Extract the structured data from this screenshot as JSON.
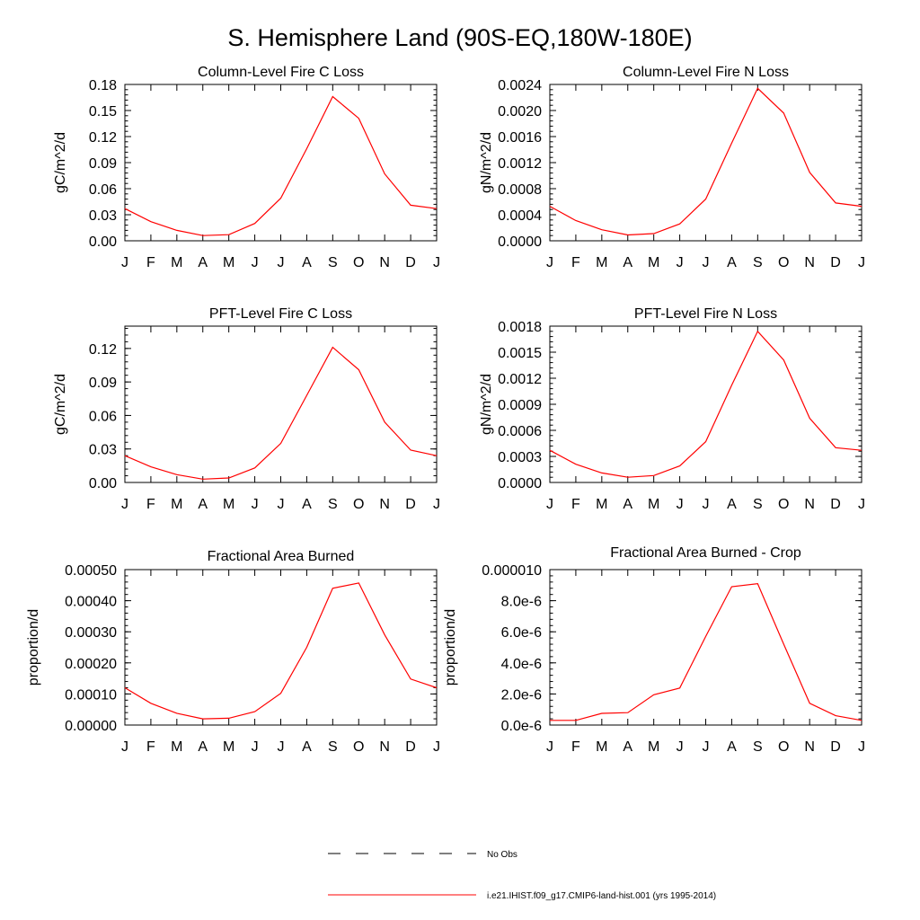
{
  "title": "S. Hemisphere Land (90S-EQ,180W-180E)",
  "chart_data": [
    {
      "type": "line",
      "title": "Column-Level Fire C Loss",
      "ylabel": "gC/m^2/d",
      "categories": [
        "J",
        "F",
        "M",
        "A",
        "M",
        "J",
        "J",
        "A",
        "S",
        "O",
        "N",
        "D",
        "J"
      ],
      "ylim": [
        0,
        0.18
      ],
      "yticks": [
        "0.00",
        "0.03",
        "0.06",
        "0.09",
        "0.12",
        "0.15",
        "0.18"
      ],
      "series": [
        {
          "name": "i.e21.IHIST.f09_g17.CMIP6-land-hist.001 (yrs 1995-2014)",
          "color": "#ff0000",
          "values": [
            0.037,
            0.022,
            0.012,
            0.006,
            0.007,
            0.02,
            0.049,
            0.106,
            0.166,
            0.141,
            0.077,
            0.041,
            0.037
          ]
        }
      ]
    },
    {
      "type": "line",
      "title": "Column-Level Fire N Loss",
      "ylabel": "gN/m^2/d",
      "categories": [
        "J",
        "F",
        "M",
        "A",
        "M",
        "J",
        "J",
        "A",
        "S",
        "O",
        "N",
        "D",
        "J"
      ],
      "ylim": [
        0,
        0.0024
      ],
      "yticks": [
        "0.0000",
        "0.0004",
        "0.0008",
        "0.0012",
        "0.0016",
        "0.0020",
        "0.0024"
      ],
      "series": [
        {
          "name": "i.e21.IHIST.f09_g17.CMIP6-land-hist.001 (yrs 1995-2014)",
          "color": "#ff0000",
          "values": [
            0.00053,
            0.00031,
            0.00017,
            9e-05,
            0.00011,
            0.00026,
            0.00064,
            0.0015,
            0.00234,
            0.00196,
            0.00105,
            0.00058,
            0.00053
          ]
        }
      ]
    },
    {
      "type": "line",
      "title": "PFT-Level Fire C Loss",
      "ylabel": "gC/m^2/d",
      "categories": [
        "J",
        "F",
        "M",
        "A",
        "M",
        "J",
        "J",
        "A",
        "S",
        "O",
        "N",
        "D",
        "J"
      ],
      "ylim": [
        0,
        0.14
      ],
      "yticks": [
        "0.00",
        "0.03",
        "0.06",
        "0.09",
        "0.12"
      ],
      "series": [
        {
          "name": "i.e21.IHIST.f09_g17.CMIP6-land-hist.001 (yrs 1995-2014)",
          "color": "#ff0000",
          "values": [
            0.024,
            0.014,
            0.007,
            0.003,
            0.004,
            0.013,
            0.035,
            0.078,
            0.121,
            0.101,
            0.054,
            0.029,
            0.024
          ]
        }
      ]
    },
    {
      "type": "line",
      "title": "PFT-Level Fire N Loss",
      "ylabel": "gN/m^2/d",
      "categories": [
        "J",
        "F",
        "M",
        "A",
        "M",
        "J",
        "J",
        "A",
        "S",
        "O",
        "N",
        "D",
        "J"
      ],
      "ylim": [
        0,
        0.0018
      ],
      "yticks": [
        "0.0000",
        "0.0003",
        "0.0006",
        "0.0009",
        "0.0012",
        "0.0015",
        "0.0018"
      ],
      "series": [
        {
          "name": "i.e21.IHIST.f09_g17.CMIP6-land-hist.001 (yrs 1995-2014)",
          "color": "#ff0000",
          "values": [
            0.00037,
            0.00021,
            0.00011,
            6e-05,
            8e-05,
            0.00019,
            0.00047,
            0.00112,
            0.00174,
            0.00141,
            0.00074,
            0.0004,
            0.00037
          ]
        }
      ]
    },
    {
      "type": "line",
      "title": "Fractional Area Burned",
      "ylabel": "proportion/d",
      "categories": [
        "J",
        "F",
        "M",
        "A",
        "M",
        "J",
        "J",
        "A",
        "S",
        "O",
        "N",
        "D",
        "J"
      ],
      "ylim": [
        0,
        0.0005
      ],
      "yticks": [
        "0.00000",
        "0.00010",
        "0.00020",
        "0.00030",
        "0.00040",
        "0.00050"
      ],
      "series": [
        {
          "name": "i.e21.IHIST.f09_g17.CMIP6-land-hist.001 (yrs 1995-2014)",
          "color": "#ff0000",
          "values": [
            0.00012,
            7e-05,
            3.8e-05,
            2e-05,
            2.2e-05,
            4.3e-05,
            0.000102,
            0.00025,
            0.00044,
            0.000457,
            0.00029,
            0.000148,
            0.00012
          ]
        }
      ]
    },
    {
      "type": "line",
      "title": "Fractional Area Burned - Crop",
      "ylabel": "proportion/d",
      "categories": [
        "J",
        "F",
        "M",
        "A",
        "M",
        "J",
        "J",
        "A",
        "S",
        "O",
        "N",
        "D",
        "J"
      ],
      "ylim": [
        0,
        1e-05
      ],
      "yticks": [
        "0.0e-6",
        "2.0e-6",
        "4.0e-6",
        "6.0e-6",
        "8.0e-6",
        "0.000010"
      ],
      "series": [
        {
          "name": "i.e21.IHIST.f09_g17.CMIP6-land-hist.001 (yrs 1995-2014)",
          "color": "#ff0000",
          "values": [
            3e-07,
            3e-07,
            7.5e-07,
            8e-07,
            1.95e-06,
            2.38e-06,
            5.7e-06,
            8.9e-06,
            9.1e-06,
            5.2e-06,
            1.4e-06,
            6e-07,
            3e-07
          ]
        }
      ]
    }
  ],
  "legend": [
    {
      "label": "No Obs",
      "style": "dashed",
      "color": "#000000"
    },
    {
      "label": "i.e21.IHIST.f09_g17.CMIP6-land-hist.001 (yrs 1995-2014)",
      "style": "solid",
      "color": "#ff0000"
    }
  ]
}
